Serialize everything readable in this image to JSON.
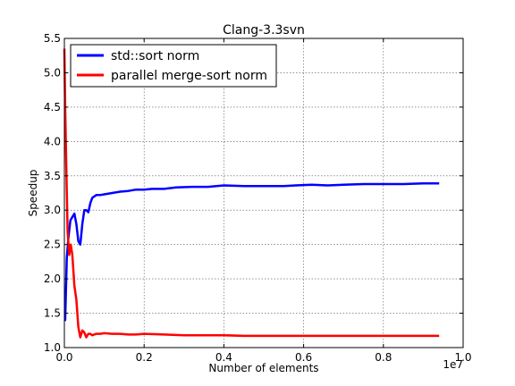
{
  "chart_data": {
    "type": "line",
    "title": "Clang-3.3svn",
    "xlabel": "Number of elements",
    "ylabel": "Speedup",
    "x_offset_label": "1e7",
    "xlim": [
      0,
      10000000
    ],
    "ylim": [
      1.0,
      5.5
    ],
    "x_ticks": [
      0,
      2000000,
      4000000,
      6000000,
      8000000,
      10000000
    ],
    "x_tick_labels": [
      "0.0",
      "0.2",
      "0.4",
      "0.6",
      "0.8",
      "1.0"
    ],
    "y_ticks": [
      1.0,
      1.5,
      2.0,
      2.5,
      3.0,
      3.5,
      4.0,
      4.5,
      5.0,
      5.5
    ],
    "y_tick_labels": [
      "1.0",
      "1.5",
      "2.0",
      "2.5",
      "3.0",
      "3.5",
      "4.0",
      "4.5",
      "5.0",
      "5.5"
    ],
    "grid": true,
    "legend_position": "top-left",
    "series": [
      {
        "name": "std::sort norm",
        "color": "#0000ff",
        "x": [
          0,
          20000,
          60000,
          100000,
          150000,
          200000,
          250000,
          300000,
          350000,
          400000,
          450000,
          500000,
          550000,
          600000,
          650000,
          700000,
          800000,
          900000,
          1000000,
          1200000,
          1400000,
          1600000,
          1800000,
          2000000,
          2200000,
          2500000,
          2800000,
          3200000,
          3600000,
          4000000,
          4500000,
          5000000,
          5500000,
          5800000,
          6200000,
          6600000,
          7000000,
          7500000,
          8000000,
          8500000,
          9000000,
          9400000
        ],
        "y": [
          1.4,
          1.4,
          2.3,
          2.6,
          2.85,
          2.9,
          2.95,
          2.8,
          2.55,
          2.5,
          2.8,
          3.0,
          3.0,
          2.97,
          3.1,
          3.18,
          3.22,
          3.22,
          3.23,
          3.25,
          3.27,
          3.28,
          3.3,
          3.3,
          3.31,
          3.31,
          3.33,
          3.34,
          3.34,
          3.36,
          3.35,
          3.35,
          3.35,
          3.36,
          3.37,
          3.36,
          3.37,
          3.38,
          3.38,
          3.38,
          3.39,
          3.39
        ]
      },
      {
        "name": "parallel merge-sort norm",
        "color": "#ff0000",
        "x": [
          0,
          20000,
          50000,
          80000,
          120000,
          160000,
          200000,
          250000,
          300000,
          350000,
          400000,
          450000,
          500000,
          550000,
          600000,
          650000,
          700000,
          800000,
          900000,
          1000000,
          1200000,
          1400000,
          1600000,
          1800000,
          2000000,
          2500000,
          3000000,
          3500000,
          4000000,
          4500000,
          5000000,
          5500000,
          6000000,
          6500000,
          7000000,
          7500000,
          8000000,
          8500000,
          9000000,
          9400000
        ],
        "y": [
          5.35,
          4.5,
          3.6,
          2.7,
          2.35,
          2.5,
          2.35,
          1.9,
          1.7,
          1.3,
          1.15,
          1.25,
          1.22,
          1.15,
          1.2,
          1.2,
          1.18,
          1.2,
          1.2,
          1.21,
          1.2,
          1.2,
          1.19,
          1.19,
          1.2,
          1.19,
          1.18,
          1.18,
          1.18,
          1.17,
          1.17,
          1.17,
          1.17,
          1.17,
          1.17,
          1.17,
          1.17,
          1.17,
          1.17,
          1.17
        ]
      }
    ]
  }
}
